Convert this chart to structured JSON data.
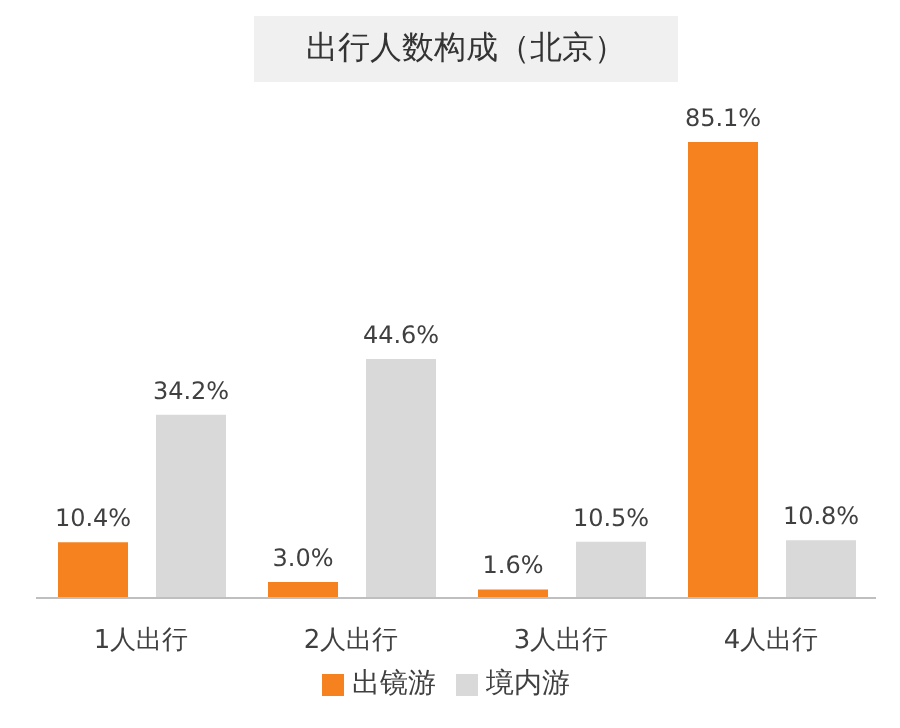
{
  "chart_data": {
    "type": "bar",
    "title": "出行人数构成（北京）",
    "categories": [
      "1人出行",
      "2人出行",
      "3人出行",
      "4人出行"
    ],
    "series": [
      {
        "name": "出镜游",
        "color": "#f5821f",
        "values": [
          10.4,
          3.0,
          1.6,
          85.1
        ],
        "value_labels": [
          "10.4%",
          "3.0%",
          "1.6%",
          "85.1%"
        ]
      },
      {
        "name": "境内游",
        "color": "#d9d9d9",
        "values": [
          34.2,
          44.6,
          10.5,
          10.8
        ],
        "value_labels": [
          "34.2%",
          "44.6%",
          "10.5%",
          "10.8%"
        ]
      }
    ],
    "legend": "bottom",
    "grid": false
  }
}
